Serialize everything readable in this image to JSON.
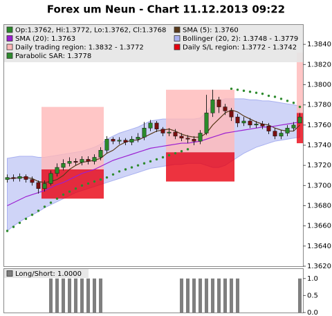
{
  "chart_data": [
    {
      "type": "candlestick",
      "title": "Forex um Neun - Chart 11.12.2013 09:22",
      "candle_name": "Op:1.3762, Hi:1.3772, Lo:1.3762, Cl:1.3768",
      "up_color": "#2a8a2a",
      "down_color": "#7a1010",
      "open": [
        1.3706,
        1.3708,
        1.3707,
        1.3709,
        1.3706,
        1.3703,
        1.3697,
        1.3702,
        1.3712,
        1.3718,
        1.3722,
        1.3724,
        1.3723,
        1.3726,
        1.3724,
        1.3728,
        1.3735,
        1.3746,
        1.3744,
        1.3745,
        1.3743,
        1.3746,
        1.3748,
        1.3757,
        1.3762,
        1.3756,
        1.3752,
        1.3753,
        1.3749,
        1.3747,
        1.3746,
        1.3744,
        1.3752,
        1.3772,
        1.3785,
        1.3778,
        1.3774,
        1.3768,
        1.3762,
        1.3764,
        1.376,
        1.3761,
        1.3759,
        1.3754,
        1.3749,
        1.3752,
        1.3757,
        1.3762
      ],
      "high": [
        1.3711,
        1.3711,
        1.3712,
        1.3711,
        1.3709,
        1.3705,
        1.3705,
        1.3715,
        1.3722,
        1.3726,
        1.3728,
        1.3727,
        1.3729,
        1.3729,
        1.3731,
        1.3738,
        1.3749,
        1.3748,
        1.3748,
        1.3747,
        1.3749,
        1.3752,
        1.3763,
        1.3765,
        1.3764,
        1.3758,
        1.3757,
        1.3756,
        1.3752,
        1.375,
        1.3749,
        1.3755,
        1.379,
        1.3795,
        1.3788,
        1.3781,
        1.3777,
        1.3771,
        1.3768,
        1.3767,
        1.3764,
        1.3764,
        1.3762,
        1.3757,
        1.3755,
        1.376,
        1.3763,
        1.3772
      ],
      "low": [
        1.3703,
        1.3704,
        1.3704,
        1.3703,
        1.37,
        1.3692,
        1.3694,
        1.37,
        1.3709,
        1.3715,
        1.3719,
        1.372,
        1.372,
        1.3721,
        1.3721,
        1.3725,
        1.3732,
        1.3741,
        1.3741,
        1.374,
        1.374,
        1.3743,
        1.3745,
        1.3754,
        1.3753,
        1.3749,
        1.3749,
        1.3746,
        1.3744,
        1.3742,
        1.374,
        1.3741,
        1.375,
        1.3768,
        1.3772,
        1.377,
        1.3764,
        1.3758,
        1.3759,
        1.3757,
        1.3757,
        1.3756,
        1.3751,
        1.3746,
        1.3746,
        1.3749,
        1.3754,
        1.3762
      ],
      "close": [
        1.3708,
        1.3707,
        1.3709,
        1.3706,
        1.3703,
        1.3697,
        1.3702,
        1.3712,
        1.3718,
        1.3722,
        1.3724,
        1.3723,
        1.3726,
        1.3724,
        1.3728,
        1.3735,
        1.3746,
        1.3744,
        1.3745,
        1.3743,
        1.3746,
        1.3748,
        1.3757,
        1.3762,
        1.3756,
        1.3752,
        1.3753,
        1.3749,
        1.3747,
        1.3746,
        1.3744,
        1.3752,
        1.3772,
        1.3785,
        1.3778,
        1.3774,
        1.3768,
        1.3762,
        1.3764,
        1.376,
        1.3761,
        1.3759,
        1.3754,
        1.3749,
        1.3752,
        1.3757,
        1.376,
        1.3768
      ],
      "overlays": [
        {
          "name": "SMA (5): 1.3760",
          "style": "line",
          "color": "#5a3a1a",
          "values": [
            1.3707,
            1.3707,
            1.3708,
            1.3708,
            1.3707,
            1.3704,
            1.3703,
            1.3704,
            1.3706,
            1.371,
            1.3716,
            1.372,
            1.3723,
            1.3724,
            1.3725,
            1.3727,
            1.3732,
            1.3735,
            1.374,
            1.3743,
            1.3745,
            1.3745,
            1.3748,
            1.3751,
            1.3754,
            1.3755,
            1.3756,
            1.3754,
            1.3751,
            1.3749,
            1.3748,
            1.3748,
            1.3752,
            1.376,
            1.3766,
            1.3772,
            1.3775,
            1.3773,
            1.3769,
            1.3766,
            1.3763,
            1.3761,
            1.376,
            1.3757,
            1.3755,
            1.3754,
            1.3754,
            1.376
          ]
        },
        {
          "name": "SMA (20): 1.3763",
          "style": "line",
          "color": "#9b1fd1",
          "values": [
            1.368,
            1.3683,
            1.3686,
            1.3689,
            1.3691,
            1.3693,
            1.3695,
            1.3698,
            1.3701,
            1.3703,
            1.3706,
            1.3709,
            1.3712,
            1.3714,
            1.3716,
            1.3719,
            1.3722,
            1.3725,
            1.3727,
            1.3729,
            1.3731,
            1.3733,
            1.3735,
            1.3737,
            1.3738,
            1.3739,
            1.374,
            1.3741,
            1.3742,
            1.3742,
            1.3743,
            1.3744,
            1.3746,
            1.3748,
            1.375,
            1.3752,
            1.3753,
            1.3754,
            1.3755,
            1.3756,
            1.3757,
            1.3758,
            1.3758,
            1.3759,
            1.376,
            1.3761,
            1.3762,
            1.3763
          ]
        },
        {
          "name": "Bollinger (20, 2): 1.3748 - 1.3779",
          "style": "band",
          "color": "#a8b0f0",
          "upper": [
            1.3727,
            1.3728,
            1.3729,
            1.3729,
            1.3729,
            1.3728,
            1.3728,
            1.3729,
            1.373,
            1.3731,
            1.3732,
            1.3733,
            1.3734,
            1.3736,
            1.3738,
            1.3741,
            1.3746,
            1.3749,
            1.3752,
            1.3754,
            1.3756,
            1.3758,
            1.3761,
            1.3764,
            1.3765,
            1.3766,
            1.3766,
            1.3766,
            1.3766,
            1.3766,
            1.3766,
            1.3767,
            1.3773,
            1.378,
            1.3784,
            1.3786,
            1.3786,
            1.3786,
            1.3786,
            1.3785,
            1.3785,
            1.3784,
            1.3784,
            1.3783,
            1.3782,
            1.3781,
            1.378,
            1.3779
          ],
          "lower": [
            1.3655,
            1.366,
            1.3664,
            1.3668,
            1.3671,
            1.3674,
            1.3678,
            1.3681,
            1.3684,
            1.3687,
            1.369,
            1.3693,
            1.3695,
            1.3697,
            1.3699,
            1.3701,
            1.3703,
            1.3705,
            1.3707,
            1.3709,
            1.3711,
            1.3713,
            1.3715,
            1.3717,
            1.3718,
            1.3719,
            1.372,
            1.3721,
            1.3721,
            1.3722,
            1.3722,
            1.3722,
            1.372,
            1.3718,
            1.3718,
            1.372,
            1.3724,
            1.3728,
            1.3732,
            1.3735,
            1.3738,
            1.374,
            1.3742,
            1.3744,
            1.3745,
            1.3746,
            1.3747,
            1.3748
          ]
        },
        {
          "name": "Daily trading region: 1.3832 - 1.3772",
          "style": "region",
          "color": "#ffb8b8",
          "upper": [
            null,
            null,
            null,
            null,
            null,
            null,
            1.3778,
            1.3778,
            1.3778,
            1.3778,
            1.3778,
            1.3778,
            1.3778,
            1.3778,
            1.3778,
            1.3778,
            null,
            null,
            null,
            null,
            null,
            null,
            null,
            null,
            null,
            null,
            1.3795,
            1.3795,
            1.3795,
            1.3795,
            1.3795,
            1.3795,
            1.3795,
            1.3795,
            1.3795,
            1.3795,
            1.3795,
            null,
            null,
            null,
            null,
            null,
            null,
            null,
            null,
            null,
            null,
            1.3832
          ],
          "lower": [
            null,
            null,
            null,
            null,
            null,
            null,
            1.3716,
            1.3716,
            1.3716,
            1.3716,
            1.3716,
            1.3716,
            1.3716,
            1.3716,
            1.3716,
            1.3716,
            null,
            null,
            null,
            null,
            null,
            null,
            null,
            null,
            null,
            null,
            1.3733,
            1.3733,
            1.3733,
            1.3733,
            1.3733,
            1.3733,
            1.3733,
            1.3733,
            1.3733,
            1.3733,
            1.3733,
            null,
            null,
            null,
            null,
            null,
            null,
            null,
            null,
            null,
            null,
            1.3772
          ]
        },
        {
          "name": "Daily S/L region: 1.3772 - 1.3742",
          "style": "region",
          "color": "#e8000f",
          "upper": [
            null,
            null,
            null,
            null,
            null,
            null,
            1.3716,
            1.3716,
            1.3716,
            1.3716,
            1.3716,
            1.3716,
            1.3716,
            1.3716,
            1.3716,
            1.3716,
            null,
            null,
            null,
            null,
            null,
            null,
            null,
            null,
            null,
            null,
            1.3733,
            1.3733,
            1.3733,
            1.3733,
            1.3733,
            1.3733,
            1.3733,
            1.3733,
            1.3733,
            1.3733,
            1.3733,
            null,
            null,
            null,
            null,
            null,
            null,
            null,
            null,
            null,
            null,
            1.3772
          ],
          "lower": [
            null,
            null,
            null,
            null,
            null,
            null,
            1.3687,
            1.3687,
            1.3687,
            1.3687,
            1.3687,
            1.3687,
            1.3687,
            1.3687,
            1.3687,
            1.3687,
            null,
            null,
            null,
            null,
            null,
            null,
            null,
            null,
            null,
            null,
            1.3704,
            1.3704,
            1.3704,
            1.3704,
            1.3704,
            1.3704,
            1.3704,
            1.3704,
            1.3704,
            1.3704,
            1.3704,
            null,
            null,
            null,
            null,
            null,
            null,
            null,
            null,
            null,
            null,
            1.3742
          ]
        },
        {
          "name": "Parabolic SAR: 1.3778",
          "style": "dots",
          "color": "#2e8b2e",
          "values": [
            1.3655,
            1.3659,
            1.3663,
            1.3667,
            1.3671,
            1.3675,
            1.3679,
            1.3683,
            1.3687,
            1.3691,
            1.3694,
            1.3697,
            1.37,
            1.3702,
            1.3704,
            1.3706,
            1.3708,
            1.3711,
            1.3714,
            1.3716,
            1.3718,
            1.372,
            1.3722,
            1.3724,
            1.3726,
            1.3728,
            1.373,
            1.3732,
            1.3734,
            1.3736,
            null,
            null,
            null,
            null,
            null,
            null,
            1.3796,
            1.3795,
            1.3794,
            1.3793,
            1.3792,
            1.3791,
            1.3789,
            1.3788,
            1.3786,
            1.3784,
            1.3782,
            1.3778
          ]
        }
      ],
      "ylim": [
        1.362,
        1.386
      ],
      "yticks": [
        {
          "value": 1.362,
          "label": "1.3620"
        },
        {
          "value": 1.364,
          "label": "1.3640"
        },
        {
          "value": 1.366,
          "label": "1.3660"
        },
        {
          "value": 1.368,
          "label": "1.3680"
        },
        {
          "value": 1.37,
          "label": "1.3700"
        },
        {
          "value": 1.372,
          "label": "1.3720"
        },
        {
          "value": 1.374,
          "label": "1.3740"
        },
        {
          "value": 1.376,
          "label": "1.3760"
        },
        {
          "value": 1.378,
          "label": "1.3780"
        },
        {
          "value": 1.38,
          "label": "1.3800"
        },
        {
          "value": 1.382,
          "label": "1.3820"
        },
        {
          "value": 1.384,
          "label": "1.3840"
        }
      ],
      "grid": false,
      "legend": "top-left"
    },
    {
      "type": "bar",
      "series": [
        {
          "name": "Long/Short: 1.0000",
          "color": "#7f7f7f",
          "values": [
            0,
            0,
            0,
            0,
            0,
            0,
            0,
            1,
            1,
            1,
            1,
            1,
            1,
            1,
            1,
            1,
            0,
            0,
            0,
            0,
            0,
            0,
            0,
            0,
            0,
            0,
            0,
            0,
            1,
            1,
            1,
            1,
            1,
            1,
            1,
            1,
            1,
            1,
            0,
            0,
            0,
            0,
            0,
            0,
            0,
            0,
            0,
            1
          ]
        }
      ],
      "ylim": [
        0,
        1.3
      ],
      "yticks": [
        {
          "value": 0,
          "label": "0.0"
        },
        0.5,
        {
          "value": 1,
          "label": "1.0"
        }
      ],
      "grid": false,
      "legend": "top-left"
    }
  ]
}
